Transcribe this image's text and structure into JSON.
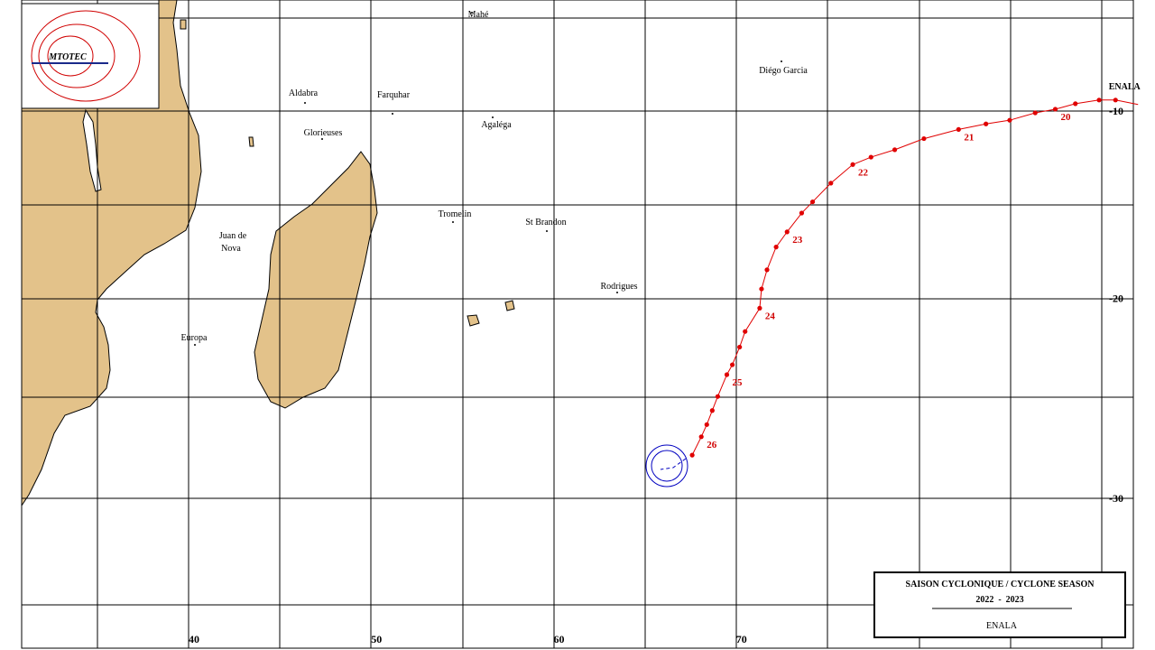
{
  "logo": "MTOTEC",
  "axes": {
    "lon_ticks": [
      40,
      50,
      60,
      70
    ],
    "lat_ticks": [
      -10,
      -20,
      -30
    ]
  },
  "places": [
    "Mahé",
    "Diégo Garcia",
    "Aldabra",
    "Farquhar",
    "Glorieuses",
    "Agaléga",
    "Tromelin",
    "St Brandon",
    "Juan de",
    "Nova",
    "Rodrigues",
    "Europa"
  ],
  "track": {
    "name": "ENALA",
    "color": "#e00000",
    "points": [
      {
        "lon": 90.5,
        "lat": -9.4
      },
      {
        "lon": 89.6,
        "lat": -9.4
      },
      {
        "lon": 88.3,
        "lat": -9.6
      },
      {
        "lon": 87.2,
        "lat": -9.9,
        "day": 20
      },
      {
        "lon": 86.1,
        "lat": -10.1
      },
      {
        "lon": 84.7,
        "lat": -10.5
      },
      {
        "lon": 83.4,
        "lat": -10.7
      },
      {
        "lon": 81.9,
        "lat": -11.0,
        "day": 21
      },
      {
        "lon": 80.0,
        "lat": -11.5
      },
      {
        "lon": 78.4,
        "lat": -12.1
      },
      {
        "lon": 77.1,
        "lat": -12.5
      },
      {
        "lon": 76.1,
        "lat": -12.9,
        "day": 22
      },
      {
        "lon": 74.9,
        "lat": -13.9
      },
      {
        "lon": 73.9,
        "lat": -14.9
      },
      {
        "lon": 73.3,
        "lat": -15.5
      },
      {
        "lon": 72.5,
        "lat": -16.5,
        "day": 23
      },
      {
        "lon": 71.9,
        "lat": -17.3
      },
      {
        "lon": 71.4,
        "lat": -18.5
      },
      {
        "lon": 71.1,
        "lat": -19.5
      },
      {
        "lon": 71.0,
        "lat": -20.5,
        "day": 24
      },
      {
        "lon": 70.2,
        "lat": -21.7
      },
      {
        "lon": 69.9,
        "lat": -22.5
      },
      {
        "lon": 69.5,
        "lat": -23.4
      },
      {
        "lon": 69.2,
        "lat": -23.9,
        "day": 25
      },
      {
        "lon": 68.7,
        "lat": -25.0
      },
      {
        "lon": 68.4,
        "lat": -25.7
      },
      {
        "lon": 68.1,
        "lat": -26.4
      },
      {
        "lon": 67.8,
        "lat": -27.0,
        "day": 26
      },
      {
        "lon": 67.3,
        "lat": -27.9
      }
    ]
  },
  "legend": {
    "season": "SAISON CYCLONIQUE / CYCLONE SEASON",
    "years": "2022  -  2023",
    "storm": "ENALA"
  }
}
